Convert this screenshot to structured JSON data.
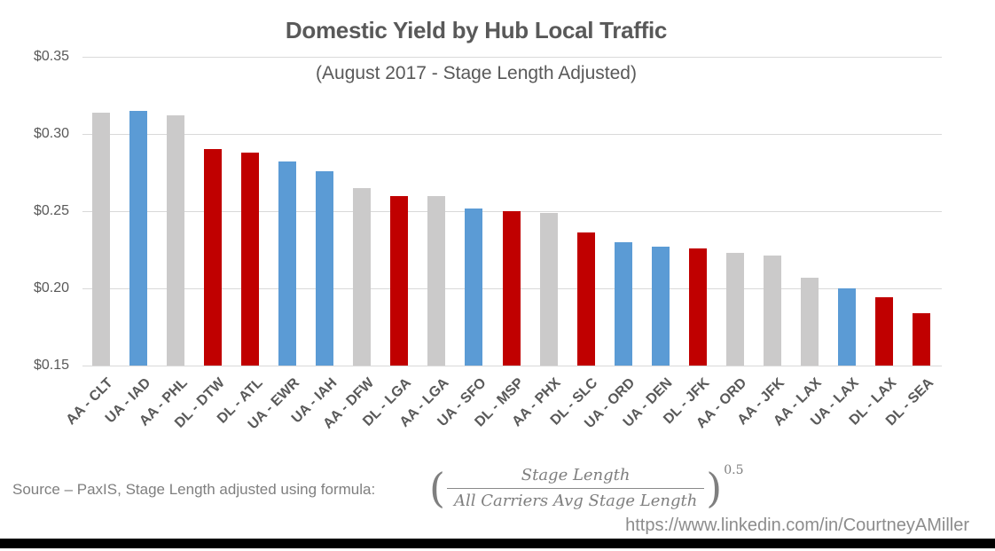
{
  "chart_data": {
    "type": "bar",
    "title": "Domestic Yield by Hub Local Traffic",
    "subtitle": "(August 2017 - Stage Length Adjusted)",
    "categories": [
      "AA - CLT",
      "UA - IAD",
      "AA - PHL",
      "DL - DTW",
      "DL - ATL",
      "UA - EWR",
      "UA - IAH",
      "AA - DFW",
      "DL - LGA",
      "AA - LGA",
      "UA - SFO",
      "DL - MSP",
      "AA - PHX",
      "DL - SLC",
      "UA - ORD",
      "UA - DEN",
      "DL - JFK",
      "AA - ORD",
      "AA - JFK",
      "AA - LAX",
      "UA - LAX",
      "DL - LAX",
      "DL - SEA"
    ],
    "values": [
      0.314,
      0.315,
      0.312,
      0.29,
      0.288,
      0.282,
      0.276,
      0.265,
      0.26,
      0.26,
      0.252,
      0.25,
      0.249,
      0.236,
      0.23,
      0.227,
      0.226,
      0.223,
      0.221,
      0.207,
      0.2,
      0.194,
      0.184
    ],
    "xlabel": "",
    "ylabel": "",
    "ylim": [
      0.15,
      0.35
    ],
    "ytick_values": [
      0.35,
      0.3,
      0.25,
      0.2,
      0.15
    ],
    "ytick_labels": [
      "$0.35",
      "$0.30",
      "$0.25",
      "$0.20",
      "$0.15"
    ],
    "grid": true,
    "legend": false,
    "bar_color_by_carrier": {
      "AA": "#CBCACA",
      "UA": "#5B9BD5",
      "DL": "#C00000"
    },
    "gridline_color": "#D9D9D9",
    "axis_text_color": "#595959",
    "title_color": "#595959"
  },
  "footer": {
    "source_text": "Source – PaxIS, Stage Length adjusted using formula:",
    "formula": {
      "open_paren": "(",
      "numerator": "Stage Length",
      "denominator": "All Carriers Avg Stage Length",
      "close_paren": ")",
      "exponent": "0.5"
    },
    "link_text": "https://www.linkedin.com/in/CourtneyAMiller"
  }
}
